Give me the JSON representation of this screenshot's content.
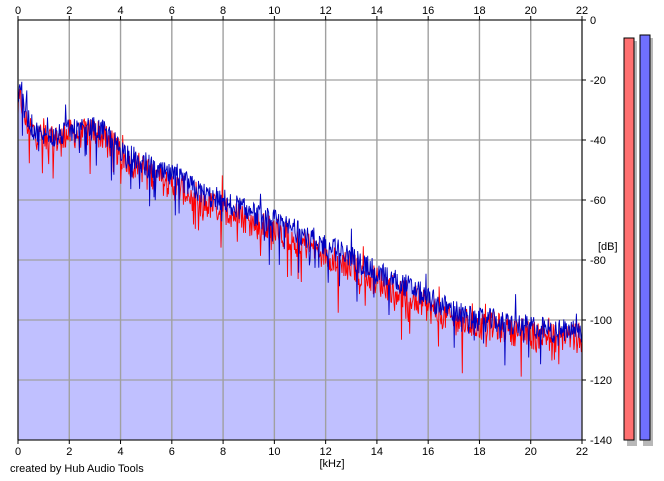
{
  "chart_data": {
    "type": "line",
    "xlabel": "[kHz]",
    "ylabel": "[dB]",
    "xlim": [
      0,
      22
    ],
    "ylim": [
      -140,
      0
    ],
    "xticks": [
      0,
      2,
      4,
      6,
      8,
      10,
      12,
      14,
      16,
      18,
      20,
      22
    ],
    "yticks": [
      0,
      -20,
      -40,
      -60,
      -80,
      -100,
      -120,
      -140
    ],
    "grid": true,
    "background_fill": "#c0c0ff",
    "series": [
      {
        "color": "#ff0000",
        "x": [
          0,
          0.1,
          0.3,
          0.5,
          0.8,
          1,
          1.5,
          2,
          2.5,
          3,
          3.5,
          4,
          4.5,
          5,
          5.5,
          6,
          6.5,
          7,
          7.5,
          8,
          8.5,
          9,
          9.5,
          10,
          10.5,
          11,
          11.5,
          12,
          12.5,
          13,
          13.5,
          14,
          14.5,
          15,
          15.5,
          16,
          16.5,
          17,
          17.5,
          18,
          18.5,
          19,
          19.5,
          20,
          20.5,
          21,
          21.5,
          22
        ],
        "values": [
          -30,
          -26,
          -34,
          -36,
          -39,
          -40,
          -40,
          -38,
          -38,
          -37,
          -40,
          -45,
          -48,
          -50,
          -53,
          -55,
          -57,
          -60,
          -62,
          -63,
          -65,
          -67,
          -69,
          -70,
          -72,
          -74,
          -76,
          -78,
          -80,
          -82,
          -85,
          -87,
          -89,
          -91,
          -93,
          -96,
          -98,
          -100,
          -101,
          -102,
          -102,
          -103,
          -104,
          -105,
          -105,
          -106,
          -105,
          -107
        ]
      },
      {
        "color": "#0000c0",
        "x": [
          0,
          0.1,
          0.3,
          0.5,
          0.8,
          1,
          1.5,
          2,
          2.5,
          3,
          3.5,
          4,
          4.5,
          5,
          5.5,
          6,
          6.5,
          7,
          7.5,
          8,
          8.5,
          9,
          9.5,
          10,
          10.5,
          11,
          11.5,
          12,
          12.5,
          13,
          13.5,
          14,
          14.5,
          15,
          15.5,
          16,
          16.5,
          17,
          17.5,
          18,
          18.5,
          19,
          19.5,
          20,
          20.5,
          21,
          21.5,
          22
        ],
        "values": [
          -27,
          -21,
          -30,
          -35,
          -38,
          -39,
          -39,
          -37,
          -37,
          -36,
          -38,
          -43,
          -46,
          -48,
          -51,
          -52,
          -54,
          -57,
          -59,
          -60,
          -62,
          -64,
          -66,
          -67,
          -69,
          -71,
          -73,
          -75,
          -77,
          -79,
          -82,
          -84,
          -86,
          -88,
          -90,
          -93,
          -95,
          -97,
          -99,
          -100,
          -100,
          -101,
          -102,
          -102,
          -103,
          -104,
          -103,
          -105
        ]
      }
    ],
    "level_meters": [
      {
        "color": "#ff7070",
        "top_db": -6,
        "bottom_db": -140
      },
      {
        "color": "#7070ff",
        "top_db": -5,
        "bottom_db": -140
      }
    ]
  },
  "footer": {
    "credit": "created by Hub Audio Tools"
  }
}
